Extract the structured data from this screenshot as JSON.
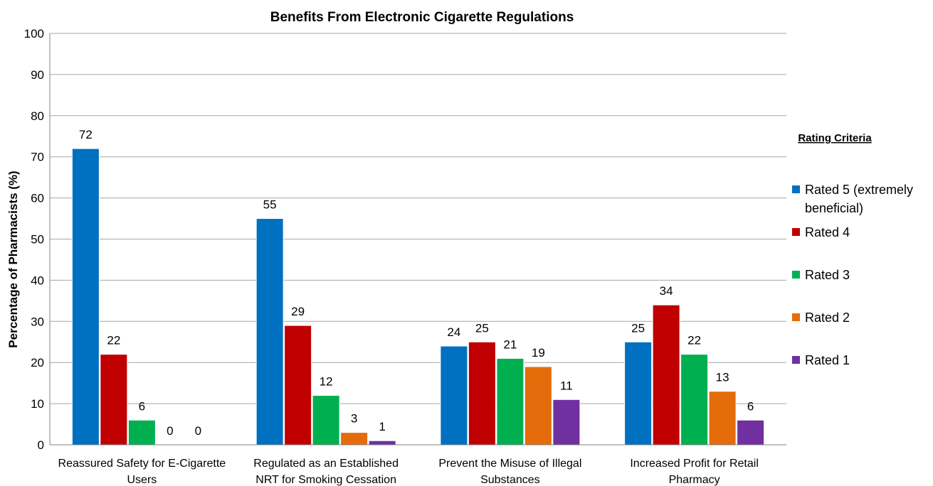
{
  "chart_data": {
    "type": "bar",
    "title": "Benefits From Electronic Cigarette Regulations",
    "xlabel": "",
    "ylabel": "Percentage of Pharmacists (%)",
    "ylim": [
      0,
      100
    ],
    "yticks": [
      0,
      10,
      20,
      30,
      40,
      50,
      60,
      70,
      80,
      90,
      100
    ],
    "grid": true,
    "legend_position": "right",
    "legend_title": "Rating Criteria",
    "categories": [
      [
        "Reassured Safety for E-Cigarette",
        "Users"
      ],
      [
        "Regulated as an Established",
        "NRT for Smoking Cessation"
      ],
      [
        "Prevent the Misuse of Illegal",
        "Substances"
      ],
      [
        "Increased Profit for Retail",
        "Pharmacy"
      ]
    ],
    "series": [
      {
        "name": "Rated 5 (extremely beneficial)",
        "name_lines": [
          "Rated 5 (extremely",
          "beneficial)"
        ],
        "color": "#0070c0",
        "values": [
          72,
          55,
          24,
          25
        ]
      },
      {
        "name": "Rated 4",
        "name_lines": [
          "Rated 4"
        ],
        "color": "#c00000",
        "values": [
          22,
          29,
          25,
          34
        ]
      },
      {
        "name": "Rated 3",
        "name_lines": [
          "Rated 3"
        ],
        "color": "#00b050",
        "values": [
          6,
          12,
          21,
          22
        ]
      },
      {
        "name": "Rated 2",
        "name_lines": [
          "Rated 2"
        ],
        "color": "#e46c0a",
        "values": [
          0,
          3,
          19,
          13
        ]
      },
      {
        "name": "Rated 1",
        "name_lines": [
          "Rated 1"
        ],
        "color": "#7030a0",
        "values": [
          0,
          1,
          11,
          6
        ]
      }
    ]
  }
}
